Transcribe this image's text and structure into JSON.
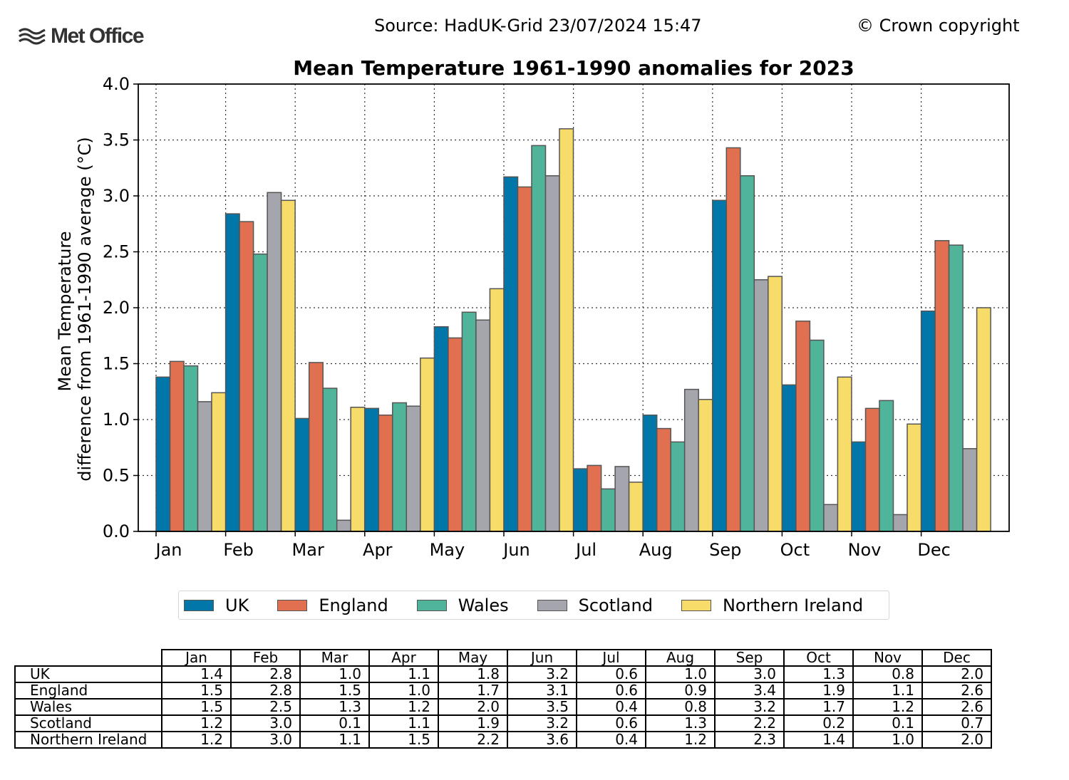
{
  "header": {
    "source": "Source: HadUK-Grid 23/07/2024 15:47",
    "copyright": "© Crown copyright",
    "logo_text": "Met Office"
  },
  "colors": {
    "UK": "#0077a8",
    "England": "#e07050",
    "Wales": "#50b49a",
    "Scotland": "#a5a5ad",
    "Northern Ireland": "#f7dc6a"
  },
  "chart_data": {
    "type": "bar",
    "title": "Mean Temperature 1961-1990 anomalies for 2023",
    "ylabel": [
      "Mean Temperature",
      "difference from 1961-1990 average (°C)"
    ],
    "xlabel": "",
    "ylim": [
      0,
      4.0
    ],
    "yticks": [
      "0.0",
      "0.5",
      "1.0",
      "1.5",
      "2.0",
      "2.5",
      "3.0",
      "3.5",
      "4.0"
    ],
    "grid": true,
    "legend_position": "bottom",
    "categories": [
      "Jan",
      "Feb",
      "Mar",
      "Apr",
      "May",
      "Jun",
      "Jul",
      "Aug",
      "Sep",
      "Oct",
      "Nov",
      "Dec"
    ],
    "series": [
      {
        "name": "UK",
        "values": [
          1.38,
          2.84,
          1.01,
          1.1,
          1.83,
          3.17,
          0.56,
          1.04,
          2.96,
          1.31,
          0.8,
          1.97
        ]
      },
      {
        "name": "England",
        "values": [
          1.52,
          2.77,
          1.51,
          1.04,
          1.73,
          3.08,
          0.59,
          0.92,
          3.43,
          1.88,
          1.1,
          2.6
        ]
      },
      {
        "name": "Wales",
        "values": [
          1.48,
          2.48,
          1.28,
          1.15,
          1.96,
          3.45,
          0.38,
          0.8,
          3.18,
          1.71,
          1.17,
          2.56
        ]
      },
      {
        "name": "Scotland",
        "values": [
          1.16,
          3.03,
          0.1,
          1.12,
          1.89,
          3.18,
          0.58,
          1.27,
          2.25,
          0.24,
          0.15,
          0.74
        ]
      },
      {
        "name": "Northern Ireland",
        "values": [
          1.24,
          2.96,
          1.11,
          1.55,
          2.17,
          3.6,
          0.44,
          1.18,
          2.28,
          1.38,
          0.96,
          2.0
        ]
      }
    ]
  },
  "table": {
    "columns": [
      "Jan",
      "Feb",
      "Mar",
      "Apr",
      "May",
      "Jun",
      "Jul",
      "Aug",
      "Sep",
      "Oct",
      "Nov",
      "Dec"
    ],
    "rows": [
      {
        "label": "UK",
        "values": [
          "1.4",
          "2.8",
          "1.0",
          "1.1",
          "1.8",
          "3.2",
          "0.6",
          "1.0",
          "3.0",
          "1.3",
          "0.8",
          "2.0"
        ]
      },
      {
        "label": "England",
        "values": [
          "1.5",
          "2.8",
          "1.5",
          "1.0",
          "1.7",
          "3.1",
          "0.6",
          "0.9",
          "3.4",
          "1.9",
          "1.1",
          "2.6"
        ]
      },
      {
        "label": "Wales",
        "values": [
          "1.5",
          "2.5",
          "1.3",
          "1.2",
          "2.0",
          "3.5",
          "0.4",
          "0.8",
          "3.2",
          "1.7",
          "1.2",
          "2.6"
        ]
      },
      {
        "label": "Scotland",
        "values": [
          "1.2",
          "3.0",
          "0.1",
          "1.1",
          "1.9",
          "3.2",
          "0.6",
          "1.3",
          "2.2",
          "0.2",
          "0.1",
          "0.7"
        ]
      },
      {
        "label": "Northern Ireland",
        "values": [
          "1.2",
          "3.0",
          "1.1",
          "1.5",
          "2.2",
          "3.6",
          "0.4",
          "1.2",
          "2.3",
          "1.4",
          "1.0",
          "2.0"
        ]
      }
    ]
  }
}
